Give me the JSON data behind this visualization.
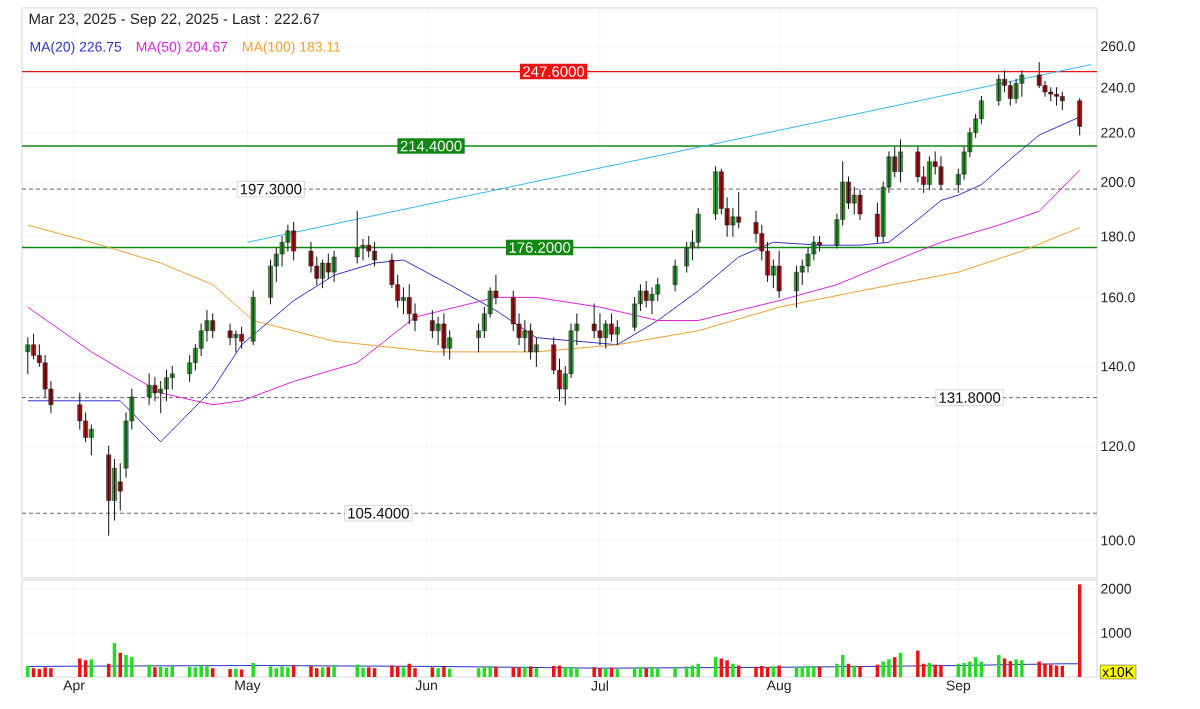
{
  "chart_data": [
    {
      "type": "candlestick",
      "title": "Mar 23, 2025 - Sep 22, 2025 - Last : 222.67",
      "legend": "top left",
      "grid": true,
      "log": "y",
      "tick_labels": "y",
      "xlim": [
        "2025-03-23",
        "2025-09-25"
      ],
      "xticks": [
        {
          "value": "2025-04-01",
          "label": null
        },
        {
          "value": "2025-05-01",
          "label": null
        },
        {
          "value": "2025-06-01",
          "label": null
        },
        {
          "value": "2025-07-01",
          "label": null
        },
        {
          "value": "2025-08-01",
          "label": null
        },
        {
          "value": "2025-09-01",
          "label": null
        }
      ],
      "ylim": [
        93,
        280
      ],
      "yticks": [
        {
          "value": 100,
          "label": "100.0"
        },
        {
          "value": 120,
          "label": "120.0"
        },
        {
          "value": 140,
          "label": "140.0"
        },
        {
          "value": 160,
          "label": "160.0"
        },
        {
          "value": 180,
          "label": "180.0"
        },
        {
          "value": 200,
          "label": "200.0"
        },
        {
          "value": 220,
          "label": "220.0"
        },
        {
          "value": 240,
          "label": "240.0"
        },
        {
          "value": 260,
          "label": "260.0"
        }
      ],
      "x": [
        "2025-03-24",
        "2025-03-25",
        "2025-03-26",
        "2025-03-27",
        "2025-03-28",
        "2025-04-02",
        "2025-04-03",
        "2025-04-04",
        "2025-04-07",
        "2025-04-08",
        "2025-04-09",
        "2025-04-10",
        "2025-04-11",
        "2025-04-14",
        "2025-04-15",
        "2025-04-16",
        "2025-04-17",
        "2025-04-18",
        "2025-04-21",
        "2025-04-22",
        "2025-04-23",
        "2025-04-24",
        "2025-04-25",
        "2025-04-28",
        "2025-04-29",
        "2025-04-30",
        "2025-05-02",
        "2025-05-05",
        "2025-05-06",
        "2025-05-07",
        "2025-05-08",
        "2025-05-09",
        "2025-05-12",
        "2025-05-13",
        "2025-05-14",
        "2025-05-15",
        "2025-05-16",
        "2025-05-20",
        "2025-05-21",
        "2025-05-22",
        "2025-05-23",
        "2025-05-26",
        "2025-05-27",
        "2025-05-28",
        "2025-05-29",
        "2025-05-30",
        "2025-06-02",
        "2025-06-03",
        "2025-06-04",
        "2025-06-05",
        "2025-06-10",
        "2025-06-11",
        "2025-06-12",
        "2025-06-13",
        "2025-06-16",
        "2025-06-17",
        "2025-06-18",
        "2025-06-19",
        "2025-06-20",
        "2025-06-23",
        "2025-06-24",
        "2025-06-25",
        "2025-06-26",
        "2025-06-27",
        "2025-06-30",
        "2025-07-01",
        "2025-07-02",
        "2025-07-03",
        "2025-07-04",
        "2025-07-07",
        "2025-07-08",
        "2025-07-09",
        "2025-07-10",
        "2025-07-11",
        "2025-07-14",
        "2025-07-16",
        "2025-07-17",
        "2025-07-18",
        "2025-07-21",
        "2025-07-22",
        "2025-07-23",
        "2025-07-24",
        "2025-07-25",
        "2025-07-28",
        "2025-07-29",
        "2025-07-30",
        "2025-07-31",
        "2025-08-01",
        "2025-08-04",
        "2025-08-05",
        "2025-08-06",
        "2025-08-07",
        "2025-08-08",
        "2025-08-11",
        "2025-08-12",
        "2025-08-13",
        "2025-08-14",
        "2025-08-15",
        "2025-08-18",
        "2025-08-19",
        "2025-08-20",
        "2025-08-21",
        "2025-08-22",
        "2025-08-25",
        "2025-08-26",
        "2025-08-27",
        "2025-08-28",
        "2025-08-29",
        "2025-09-01",
        "2025-09-02",
        "2025-09-03",
        "2025-09-04",
        "2025-09-05",
        "2025-09-08",
        "2025-09-09",
        "2025-09-10",
        "2025-09-11",
        "2025-09-12",
        "2025-09-15",
        "2025-09-16",
        "2025-09-17",
        "2025-09-18",
        "2025-09-19",
        "2025-09-22"
      ],
      "ohlc": [
        [
          144,
          148,
          138,
          146
        ],
        [
          146,
          149,
          142,
          143
        ],
        [
          143,
          146,
          140,
          141
        ],
        [
          141,
          143,
          132,
          134
        ],
        [
          134,
          136,
          128,
          130
        ],
        [
          130,
          133,
          124,
          126
        ],
        [
          126,
          128,
          121,
          122
        ],
        [
          122,
          125,
          118,
          124
        ],
        [
          118,
          120,
          101,
          108
        ],
        [
          108,
          117,
          104,
          115
        ],
        [
          112,
          116,
          106,
          110
        ],
        [
          115,
          128,
          113,
          126
        ],
        [
          126,
          134,
          124,
          132
        ],
        [
          132,
          138,
          130,
          135
        ],
        [
          135,
          137,
          131,
          133
        ],
        [
          133,
          136,
          128,
          134
        ],
        [
          134,
          139,
          131,
          137
        ],
        [
          137,
          140,
          134,
          138
        ],
        [
          138,
          143,
          136,
          141
        ],
        [
          141,
          146,
          139,
          145
        ],
        [
          145,
          152,
          143,
          150
        ],
        [
          150,
          156,
          147,
          153
        ],
        [
          153,
          155,
          148,
          150
        ],
        [
          150,
          152,
          146,
          148
        ],
        [
          148,
          150,
          144,
          149
        ],
        [
          149,
          151,
          145,
          147
        ],
        [
          147,
          162,
          146,
          160
        ],
        [
          160,
          172,
          158,
          170
        ],
        [
          170,
          176,
          165,
          174
        ],
        [
          174,
          180,
          170,
          178
        ],
        [
          178,
          184,
          175,
          182
        ],
        [
          182,
          185,
          172,
          175
        ],
        [
          175,
          178,
          168,
          170
        ],
        [
          170,
          173,
          164,
          166
        ],
        [
          166,
          172,
          163,
          171
        ],
        [
          171,
          174,
          166,
          168
        ],
        [
          168,
          175,
          165,
          173
        ],
        [
          173,
          189,
          171,
          176
        ],
        [
          176,
          179,
          172,
          177
        ],
        [
          177,
          180,
          173,
          175
        ],
        [
          175,
          178,
          170,
          172
        ],
        [
          172,
          174,
          163,
          164
        ],
        [
          164,
          167,
          157,
          159
        ],
        [
          159,
          163,
          155,
          160
        ],
        [
          160,
          164,
          152,
          155
        ],
        [
          155,
          158,
          150,
          153
        ],
        [
          153,
          156,
          148,
          150
        ],
        [
          150,
          154,
          146,
          152
        ],
        [
          152,
          155,
          143,
          145
        ],
        [
          145,
          150,
          142,
          148
        ],
        [
          148,
          152,
          144,
          150
        ],
        [
          150,
          157,
          148,
          155
        ],
        [
          155,
          163,
          154,
          162
        ],
        [
          162,
          167,
          158,
          160
        ],
        [
          160,
          162,
          150,
          152
        ],
        [
          152,
          155,
          146,
          148
        ],
        [
          148,
          153,
          144,
          150
        ],
        [
          150,
          152,
          142,
          144
        ],
        [
          144,
          148,
          140,
          146
        ],
        [
          146,
          148,
          138,
          139
        ],
        [
          139,
          142,
          131,
          134
        ],
        [
          134,
          140,
          130,
          138
        ],
        [
          138,
          152,
          137,
          150
        ],
        [
          150,
          155,
          146,
          152
        ],
        [
          152,
          158,
          148,
          150
        ],
        [
          150,
          155,
          146,
          148
        ],
        [
          148,
          153,
          145,
          152
        ],
        [
          152,
          155,
          147,
          149
        ],
        [
          149,
          153,
          146,
          151
        ],
        [
          151,
          160,
          150,
          158
        ],
        [
          158,
          164,
          156,
          162
        ],
        [
          162,
          165,
          157,
          159
        ],
        [
          159,
          163,
          155,
          161
        ],
        [
          161,
          166,
          159,
          164
        ],
        [
          164,
          172,
          162,
          170
        ],
        [
          170,
          178,
          168,
          176
        ],
        [
          176,
          182,
          172,
          178
        ],
        [
          178,
          190,
          176,
          188
        ],
        [
          188,
          206,
          186,
          204
        ],
        [
          204,
          205,
          188,
          190
        ],
        [
          190,
          194,
          180,
          184
        ],
        [
          184,
          190,
          180,
          187
        ],
        [
          187,
          196,
          183,
          185
        ],
        [
          185,
          189,
          178,
          181
        ],
        [
          181,
          184,
          172,
          175
        ],
        [
          175,
          178,
          165,
          167
        ],
        [
          167,
          172,
          163,
          170
        ],
        [
          170,
          175,
          160,
          162
        ],
        [
          162,
          170,
          157,
          168
        ],
        [
          168,
          172,
          164,
          170
        ],
        [
          170,
          176,
          168,
          174
        ],
        [
          174,
          180,
          172,
          178
        ],
        [
          178,
          180,
          175,
          177
        ],
        [
          177,
          188,
          176,
          186
        ],
        [
          186,
          208,
          184,
          200
        ],
        [
          200,
          202,
          190,
          192
        ],
        [
          192,
          198,
          188,
          195
        ],
        [
          195,
          197,
          186,
          188
        ],
        [
          188,
          192,
          178,
          180
        ],
        [
          180,
          200,
          178,
          198
        ],
        [
          198,
          212,
          196,
          210
        ],
        [
          210,
          214,
          202,
          204
        ],
        [
          204,
          217,
          200,
          212
        ],
        [
          212,
          214,
          200,
          202
        ],
        [
          202,
          206,
          196,
          199
        ],
        [
          199,
          210,
          197,
          208
        ],
        [
          208,
          212,
          203,
          206
        ],
        [
          206,
          210,
          197,
          199
        ],
        [
          199,
          205,
          196,
          203
        ],
        [
          203,
          214,
          201,
          212
        ],
        [
          212,
          222,
          210,
          220
        ],
        [
          220,
          228,
          218,
          226
        ],
        [
          226,
          236,
          224,
          234
        ],
        [
          234,
          246,
          232,
          244
        ],
        [
          244,
          248,
          238,
          241
        ],
        [
          241,
          243,
          232,
          235
        ],
        [
          235,
          244,
          233,
          242
        ],
        [
          242,
          248,
          236,
          246
        ],
        [
          246,
          252,
          240,
          241
        ],
        [
          241,
          243,
          236,
          238
        ],
        [
          238,
          240,
          234,
          237
        ],
        [
          237,
          240,
          232,
          236
        ],
        [
          236,
          238,
          230,
          234
        ],
        [
          234,
          235,
          219,
          222.67
        ]
      ],
      "colors": [
        "#2f9e2f",
        "#a31515",
        "#a31515",
        "#a31515",
        "#a31515",
        "#a31515",
        "#a31515",
        "#2f9e2f",
        "#a31515",
        "#2f9e2f",
        "#a31515",
        "#2f9e2f",
        "#2f9e2f",
        "#2f9e2f",
        "#a31515",
        "#2f9e2f",
        "#2f9e2f",
        "#2f9e2f",
        "#2f9e2f",
        "#2f9e2f",
        "#2f9e2f",
        "#2f9e2f",
        "#a31515",
        "#a31515",
        "#2f9e2f",
        "#a31515",
        "#2f9e2f",
        "#2f9e2f",
        "#2f9e2f",
        "#2f9e2f",
        "#2f9e2f",
        "#a31515",
        "#a31515",
        "#a31515",
        "#2f9e2f",
        "#a31515",
        "#2f9e2f",
        "#2f9e2f",
        "#2f9e2f",
        "#a31515",
        "#a31515",
        "#a31515",
        "#a31515",
        "#2f9e2f",
        "#a31515",
        "#a31515",
        "#a31515",
        "#2f9e2f",
        "#a31515",
        "#2f9e2f",
        "#2f9e2f",
        "#2f9e2f",
        "#2f9e2f",
        "#a31515",
        "#a31515",
        "#a31515",
        "#2f9e2f",
        "#a31515",
        "#2f9e2f",
        "#a31515",
        "#a31515",
        "#2f9e2f",
        "#2f9e2f",
        "#2f9e2f",
        "#a31515",
        "#a31515",
        "#2f9e2f",
        "#a31515",
        "#2f9e2f",
        "#2f9e2f",
        "#2f9e2f",
        "#a31515",
        "#2f9e2f",
        "#2f9e2f",
        "#2f9e2f",
        "#2f9e2f",
        "#2f9e2f",
        "#2f9e2f",
        "#2f9e2f",
        "#a31515",
        "#a31515",
        "#2f9e2f",
        "#a31515",
        "#a31515",
        "#a31515",
        "#a31515",
        "#2f9e2f",
        "#a31515",
        "#2f9e2f",
        "#2f9e2f",
        "#2f9e2f",
        "#2f9e2f",
        "#a31515",
        "#2f9e2f",
        "#2f9e2f",
        "#a31515",
        "#2f9e2f",
        "#a31515",
        "#a31515",
        "#2f9e2f",
        "#2f9e2f",
        "#a31515",
        "#2f9e2f",
        "#a31515",
        "#a31515",
        "#2f9e2f",
        "#a31515",
        "#a31515",
        "#2f9e2f",
        "#2f9e2f",
        "#2f9e2f",
        "#2f9e2f",
        "#2f9e2f",
        "#2f9e2f",
        "#a31515",
        "#a31515",
        "#2f9e2f",
        "#2f9e2f",
        "#a31515",
        "#a31515",
        "#a31515",
        "#a31515",
        "#a31515",
        "#a31515"
      ],
      "series": [
        {
          "type": "line",
          "name": "MA(20) 226.75",
          "color": "#3333cc",
          "x": [
            "2025-03-24",
            "2025-04-09",
            "2025-04-16",
            "2025-04-25",
            "2025-04-30",
            "2025-05-09",
            "2025-05-16",
            "2025-05-23",
            "2025-05-28",
            "2025-06-05",
            "2025-06-13",
            "2025-06-20",
            "2025-06-27",
            "2025-07-04",
            "2025-07-11",
            "2025-07-18",
            "2025-07-25",
            "2025-07-31",
            "2025-08-08",
            "2025-08-15",
            "2025-08-20",
            "2025-08-25",
            "2025-08-29",
            "2025-09-01",
            "2025-09-05",
            "2025-09-10",
            "2025-09-15",
            "2025-09-22"
          ],
          "values": [
            131,
            131,
            121,
            134,
            146,
            159,
            167,
            171,
            172,
            164,
            156,
            148,
            147,
            146,
            153,
            162,
            173,
            178,
            177,
            177,
            178,
            186,
            193,
            195,
            199,
            209,
            219,
            226.75
          ]
        },
        {
          "type": "line",
          "name": "MA(50) 204.67",
          "color": "#e020e0",
          "x": [
            "2025-03-24",
            "2025-04-04",
            "2025-04-16",
            "2025-04-25",
            "2025-04-30",
            "2025-05-09",
            "2025-05-20",
            "2025-05-30",
            "2025-06-13",
            "2025-06-20",
            "2025-07-01",
            "2025-07-11",
            "2025-07-18",
            "2025-07-25",
            "2025-08-01",
            "2025-08-11",
            "2025-08-20",
            "2025-08-29",
            "2025-09-08",
            "2025-09-15",
            "2025-09-22"
          ],
          "values": [
            157,
            144,
            133,
            130,
            131,
            136,
            141,
            154,
            160,
            160,
            157,
            153,
            153,
            156,
            159,
            164,
            171,
            178,
            184,
            189,
            204.67
          ]
        },
        {
          "type": "line",
          "name": "MA(100) 183.11",
          "color": "#f0a030",
          "x": [
            "2025-03-24",
            "2025-04-04",
            "2025-04-16",
            "2025-04-25",
            "2025-05-02",
            "2025-05-16",
            "2025-06-02",
            "2025-06-20",
            "2025-07-04",
            "2025-07-18",
            "2025-08-01",
            "2025-08-15",
            "2025-09-01",
            "2025-09-12",
            "2025-09-22"
          ],
          "values": [
            184,
            178,
            171,
            164,
            153,
            147,
            144,
            144,
            146,
            150,
            157,
            162,
            168,
            175,
            183.11
          ]
        },
        {
          "type": "line",
          "color": "#33bbee",
          "x": [
            "2025-05-01",
            "2025-09-24"
          ],
          "values": [
            178,
            251
          ]
        }
      ],
      "ref_lines": [
        {
          "axis": "y",
          "value": 247.6,
          "label": "247.6000",
          "color": "#ee1111",
          "line_style": "solid"
        },
        {
          "axis": "y",
          "value": 214.4,
          "label": "214.4000",
          "color": "#118811",
          "line_style": "solid"
        },
        {
          "axis": "y",
          "value": 197.3,
          "label": "197.3000",
          "color": "#666666",
          "line_style": "dashed"
        },
        {
          "axis": "y",
          "value": 176.2,
          "label": "176.2000",
          "color": "#118811",
          "line_style": "solid"
        },
        {
          "axis": "y",
          "value": 131.8,
          "label": "131.8000",
          "color": "#666666",
          "line_style": "dashed"
        },
        {
          "axis": "y",
          "value": 105.4,
          "label": "105.4000",
          "color": "#666666",
          "line_style": "dashed"
        }
      ]
    },
    {
      "type": "bar",
      "grid": true,
      "xlim": [
        "2025-03-23",
        "2025-09-25"
      ],
      "xticks": [
        {
          "value": "2025-04-01",
          "label": "Apr"
        },
        {
          "value": "2025-05-01",
          "label": "May"
        },
        {
          "value": "2025-06-01",
          "label": "Jun"
        },
        {
          "value": "2025-07-01",
          "label": "Jul"
        },
        {
          "value": "2025-08-01",
          "label": "Aug"
        },
        {
          "value": "2025-09-01",
          "label": "Sep"
        }
      ],
      "ylim": [
        0,
        2200
      ],
      "yticks": [
        1000,
        2000
      ],
      "annotations": [
        "x10K"
      ],
      "x": [
        "2025-03-24",
        "2025-03-25",
        "2025-03-26",
        "2025-03-27",
        "2025-03-28",
        "2025-04-02",
        "2025-04-03",
        "2025-04-04",
        "2025-04-07",
        "2025-04-08",
        "2025-04-09",
        "2025-04-10",
        "2025-04-11",
        "2025-04-14",
        "2025-04-15",
        "2025-04-16",
        "2025-04-17",
        "2025-04-18",
        "2025-04-21",
        "2025-04-22",
        "2025-04-23",
        "2025-04-24",
        "2025-04-25",
        "2025-04-28",
        "2025-04-29",
        "2025-04-30",
        "2025-05-02",
        "2025-05-05",
        "2025-05-06",
        "2025-05-07",
        "2025-05-08",
        "2025-05-09",
        "2025-05-12",
        "2025-05-13",
        "2025-05-14",
        "2025-05-15",
        "2025-05-16",
        "2025-05-20",
        "2025-05-21",
        "2025-05-22",
        "2025-05-23",
        "2025-05-26",
        "2025-05-27",
        "2025-05-28",
        "2025-05-29",
        "2025-05-30",
        "2025-06-02",
        "2025-06-03",
        "2025-06-04",
        "2025-06-05",
        "2025-06-10",
        "2025-06-11",
        "2025-06-12",
        "2025-06-13",
        "2025-06-16",
        "2025-06-17",
        "2025-06-18",
        "2025-06-19",
        "2025-06-20",
        "2025-06-23",
        "2025-06-24",
        "2025-06-25",
        "2025-06-26",
        "2025-06-27",
        "2025-06-30",
        "2025-07-01",
        "2025-07-02",
        "2025-07-03",
        "2025-07-04",
        "2025-07-07",
        "2025-07-08",
        "2025-07-09",
        "2025-07-10",
        "2025-07-11",
        "2025-07-14",
        "2025-07-16",
        "2025-07-17",
        "2025-07-18",
        "2025-07-21",
        "2025-07-22",
        "2025-07-23",
        "2025-07-24",
        "2025-07-25",
        "2025-07-28",
        "2025-07-29",
        "2025-07-30",
        "2025-07-31",
        "2025-08-01",
        "2025-08-04",
        "2025-08-05",
        "2025-08-06",
        "2025-08-07",
        "2025-08-08",
        "2025-08-11",
        "2025-08-12",
        "2025-08-13",
        "2025-08-14",
        "2025-08-15",
        "2025-08-18",
        "2025-08-19",
        "2025-08-20",
        "2025-08-21",
        "2025-08-22",
        "2025-08-25",
        "2025-08-26",
        "2025-08-27",
        "2025-08-28",
        "2025-08-29",
        "2025-09-01",
        "2025-09-02",
        "2025-09-03",
        "2025-09-04",
        "2025-09-05",
        "2025-09-08",
        "2025-09-09",
        "2025-09-10",
        "2025-09-11",
        "2025-09-12",
        "2025-09-15",
        "2025-09-16",
        "2025-09-17",
        "2025-09-18",
        "2025-09-19",
        "2025-09-22"
      ],
      "values": [
        250,
        200,
        180,
        220,
        200,
        420,
        380,
        400,
        300,
        770,
        550,
        500,
        450,
        280,
        220,
        230,
        210,
        250,
        230,
        220,
        260,
        240,
        200,
        180,
        190,
        170,
        320,
        240,
        200,
        240,
        220,
        260,
        250,
        200,
        220,
        230,
        260,
        280,
        210,
        220,
        200,
        260,
        240,
        220,
        300,
        200,
        220,
        200,
        230,
        190,
        200,
        220,
        240,
        230,
        220,
        210,
        230,
        240,
        200,
        250,
        260,
        230,
        220,
        200,
        220,
        200,
        190,
        210,
        180,
        200,
        230,
        200,
        220,
        190,
        220,
        240,
        260,
        300,
        450,
        420,
        380,
        300,
        260,
        230,
        250,
        220,
        240,
        260,
        220,
        230,
        250,
        240,
        230,
        300,
        500,
        300,
        260,
        250,
        280,
        350,
        400,
        450,
        550,
        600,
        300,
        320,
        280,
        260,
        300,
        320,
        350,
        450,
        350,
        500,
        420,
        360,
        400,
        380,
        350,
        300,
        280,
        260,
        250,
        2100
      ],
      "colors": [
        "#22dd22",
        "#ee1111",
        "#ee1111",
        "#ee1111",
        "#ee1111",
        "#ee1111",
        "#ee1111",
        "#22dd22",
        "#ee1111",
        "#22dd22",
        "#ee1111",
        "#22dd22",
        "#22dd22",
        "#22dd22",
        "#ee1111",
        "#22dd22",
        "#22dd22",
        "#22dd22",
        "#22dd22",
        "#22dd22",
        "#22dd22",
        "#22dd22",
        "#ee1111",
        "#ee1111",
        "#22dd22",
        "#ee1111",
        "#22dd22",
        "#22dd22",
        "#22dd22",
        "#22dd22",
        "#22dd22",
        "#ee1111",
        "#ee1111",
        "#ee1111",
        "#22dd22",
        "#ee1111",
        "#22dd22",
        "#22dd22",
        "#22dd22",
        "#ee1111",
        "#ee1111",
        "#ee1111",
        "#ee1111",
        "#22dd22",
        "#ee1111",
        "#ee1111",
        "#ee1111",
        "#22dd22",
        "#ee1111",
        "#22dd22",
        "#22dd22",
        "#22dd22",
        "#22dd22",
        "#ee1111",
        "#ee1111",
        "#ee1111",
        "#22dd22",
        "#ee1111",
        "#22dd22",
        "#ee1111",
        "#ee1111",
        "#22dd22",
        "#22dd22",
        "#22dd22",
        "#ee1111",
        "#ee1111",
        "#22dd22",
        "#ee1111",
        "#22dd22",
        "#22dd22",
        "#22dd22",
        "#ee1111",
        "#22dd22",
        "#22dd22",
        "#22dd22",
        "#22dd22",
        "#22dd22",
        "#22dd22",
        "#22dd22",
        "#ee1111",
        "#ee1111",
        "#22dd22",
        "#ee1111",
        "#ee1111",
        "#ee1111",
        "#ee1111",
        "#22dd22",
        "#ee1111",
        "#22dd22",
        "#22dd22",
        "#22dd22",
        "#22dd22",
        "#ee1111",
        "#22dd22",
        "#22dd22",
        "#ee1111",
        "#22dd22",
        "#ee1111",
        "#ee1111",
        "#22dd22",
        "#22dd22",
        "#ee1111",
        "#22dd22",
        "#ee1111",
        "#ee1111",
        "#22dd22",
        "#ee1111",
        "#ee1111",
        "#22dd22",
        "#22dd22",
        "#22dd22",
        "#22dd22",
        "#22dd22",
        "#22dd22",
        "#ee1111",
        "#ee1111",
        "#22dd22",
        "#22dd22",
        "#ee1111",
        "#ee1111",
        "#ee1111",
        "#ee1111",
        "#ee1111",
        "#ee1111"
      ],
      "series": [
        {
          "type": "line",
          "color": "#2233bb",
          "x": [
            "2025-03-24",
            "2025-04-11",
            "2025-05-02",
            "2025-06-02",
            "2025-07-01",
            "2025-08-01",
            "2025-09-01",
            "2025-09-19",
            "2025-09-22"
          ],
          "values": [
            240,
            250,
            260,
            240,
            200,
            220,
            260,
            300,
            300
          ]
        }
      ]
    }
  ]
}
